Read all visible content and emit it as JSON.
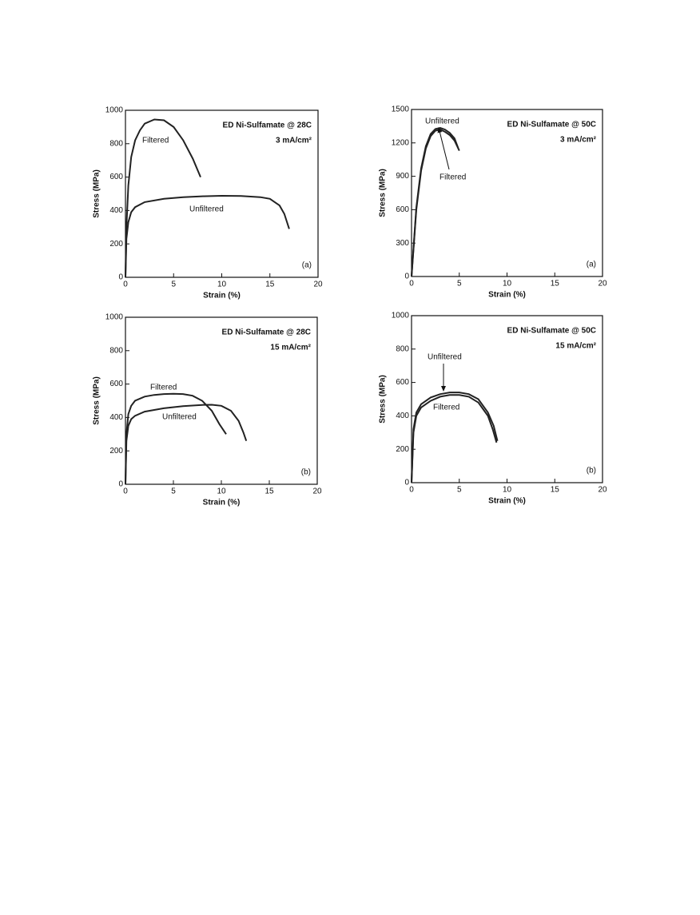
{
  "chart_data": [
    {
      "type": "line",
      "title": "ED Ni-Sulfamate @ 28C",
      "subtitle": "3 mA/cm²",
      "annotation": "(a)",
      "x_label": "Strain (%)",
      "y_label": "Stress (MPa)",
      "xlim": [
        0,
        20
      ],
      "xticks": [
        0,
        5,
        10,
        15,
        20
      ],
      "ylim": [
        0,
        1000
      ],
      "yticks": [
        0,
        200,
        400,
        600,
        800,
        1000
      ],
      "series": [
        {
          "name": "Filtered",
          "color": "#222222",
          "x": [
            0,
            0.1,
            0.3,
            0.6,
            1,
            1.5,
            2,
            3,
            4,
            5,
            6,
            7,
            7.8
          ],
          "values": [
            0,
            300,
            550,
            720,
            820,
            880,
            920,
            945,
            940,
            900,
            820,
            710,
            600
          ]
        },
        {
          "name": "Unfiltered",
          "color": "#222222",
          "x": [
            0,
            0.1,
            0.3,
            0.6,
            1,
            2,
            4,
            6,
            8,
            10,
            12,
            14,
            15,
            16,
            16.5,
            17
          ],
          "values": [
            0,
            230,
            330,
            390,
            420,
            450,
            470,
            480,
            485,
            488,
            487,
            480,
            470,
            430,
            380,
            290
          ]
        }
      ]
    },
    {
      "type": "line",
      "title": "ED Ni-Sulfamate @ 50C",
      "subtitle": "3 mA/cm²",
      "annotation": "(a)",
      "x_label": "Strain (%)",
      "y_label": "Stress (MPa)",
      "xlim": [
        0,
        20
      ],
      "xticks": [
        0,
        5,
        10,
        15,
        20
      ],
      "ylim": [
        0,
        1500
      ],
      "yticks": [
        0,
        300,
        600,
        900,
        1200,
        1500
      ],
      "series": [
        {
          "name": "Unfiltered",
          "color": "#222222",
          "x": [
            0,
            0.5,
            1,
            1.5,
            2,
            2.5,
            3,
            3.5,
            4,
            4.5,
            4.9
          ],
          "values": [
            0,
            620,
            970,
            1170,
            1280,
            1325,
            1335,
            1320,
            1290,
            1240,
            1150
          ]
        },
        {
          "name": "Filtered",
          "color": "#222222",
          "x": [
            0,
            0.5,
            1,
            1.5,
            2,
            2.5,
            3,
            3.5,
            4,
            4.5,
            5
          ],
          "values": [
            0,
            600,
            950,
            1150,
            1260,
            1310,
            1320,
            1300,
            1270,
            1220,
            1130
          ]
        }
      ]
    },
    {
      "type": "line",
      "title": "ED Ni-Sulfamate @ 28C",
      "subtitle": "15 mA/cm²",
      "annotation": "(b)",
      "x_label": "Strain (%)",
      "y_label": "Stress (MPa)",
      "xlim": [
        0,
        20
      ],
      "xticks": [
        0,
        5,
        10,
        15,
        20
      ],
      "ylim": [
        0,
        1000
      ],
      "yticks": [
        0,
        200,
        400,
        600,
        800,
        1000
      ],
      "series": [
        {
          "name": "Filtered",
          "color": "#222222",
          "x": [
            0,
            0.1,
            0.3,
            0.6,
            1,
            2,
            3,
            4,
            5,
            6,
            7,
            8,
            9,
            9.8,
            10.5
          ],
          "values": [
            0,
            300,
            420,
            470,
            500,
            525,
            535,
            540,
            542,
            540,
            530,
            500,
            440,
            360,
            300
          ]
        },
        {
          "name": "Unfiltered",
          "color": "#222222",
          "x": [
            0,
            0.1,
            0.3,
            0.6,
            1,
            2,
            4,
            6,
            8,
            9,
            10,
            11,
            11.8,
            12.3,
            12.6
          ],
          "values": [
            0,
            260,
            350,
            390,
            410,
            435,
            455,
            468,
            475,
            476,
            470,
            440,
            380,
            310,
            260
          ]
        }
      ]
    },
    {
      "type": "line",
      "title": "ED Ni-Sulfamate @ 50C",
      "subtitle": "15 mA/cm²",
      "annotation": "(b)",
      "x_label": "Strain (%)",
      "y_label": "Stress (MPa)",
      "xlim": [
        0,
        20
      ],
      "xticks": [
        0,
        5,
        10,
        15,
        20
      ],
      "ylim": [
        0,
        1000
      ],
      "yticks": [
        0,
        200,
        400,
        600,
        800,
        1000
      ],
      "series": [
        {
          "name": "Unfiltered",
          "color": "#222222",
          "x": [
            0,
            0.2,
            0.5,
            1,
            2,
            3,
            4,
            5,
            6,
            7,
            8,
            8.6,
            9
          ],
          "values": [
            0,
            320,
            420,
            470,
            510,
            530,
            540,
            540,
            530,
            500,
            420,
            340,
            250
          ]
        },
        {
          "name": "Filtered",
          "color": "#222222",
          "x": [
            0,
            0.2,
            0.5,
            1,
            2,
            3,
            4,
            5,
            6,
            7,
            8,
            8.5,
            8.9
          ],
          "values": [
            0,
            300,
            400,
            450,
            490,
            515,
            525,
            525,
            515,
            480,
            400,
            320,
            240
          ]
        }
      ]
    }
  ]
}
